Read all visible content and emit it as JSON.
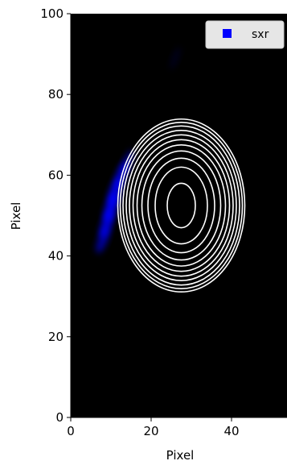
{
  "chart_data": {
    "type": "heatmap",
    "xlabel": "Pixel",
    "ylabel": "Pixel",
    "xlim": [
      0,
      54
    ],
    "ylim": [
      0,
      100
    ],
    "xticks": [
      0,
      20,
      40
    ],
    "yticks": [
      0,
      20,
      40,
      60,
      80,
      100
    ],
    "background": "#000000",
    "legend": {
      "placement": "top-right",
      "entries": [
        {
          "name": "sxr",
          "color": "#0000ff"
        }
      ]
    },
    "contours": {
      "color": "#ffffff",
      "center": [
        27.5,
        52.5
      ],
      "semi_axes": [
        [
          3.5,
          5.5
        ],
        [
          6.5,
          9.5
        ],
        [
          8.3,
          11.7
        ],
        [
          9.8,
          13.5
        ],
        [
          11.0,
          15.0
        ],
        [
          12.0,
          16.3
        ],
        [
          12.9,
          17.5
        ],
        [
          13.7,
          18.6
        ],
        [
          14.5,
          19.7
        ],
        [
          15.2,
          20.6
        ],
        [
          15.8,
          21.4
        ]
      ]
    },
    "sxr_emission": [
      {
        "x": 8,
        "y": 44,
        "intensity": 0.6
      },
      {
        "x": 9,
        "y": 48,
        "intensity": 0.8
      },
      {
        "x": 10,
        "y": 52,
        "intensity": 0.9
      },
      {
        "x": 11,
        "y": 56,
        "intensity": 0.85
      },
      {
        "x": 12.5,
        "y": 60,
        "intensity": 0.7
      },
      {
        "x": 14,
        "y": 63,
        "intensity": 0.5
      },
      {
        "x": 26,
        "y": 89,
        "intensity": 0.1
      }
    ]
  }
}
